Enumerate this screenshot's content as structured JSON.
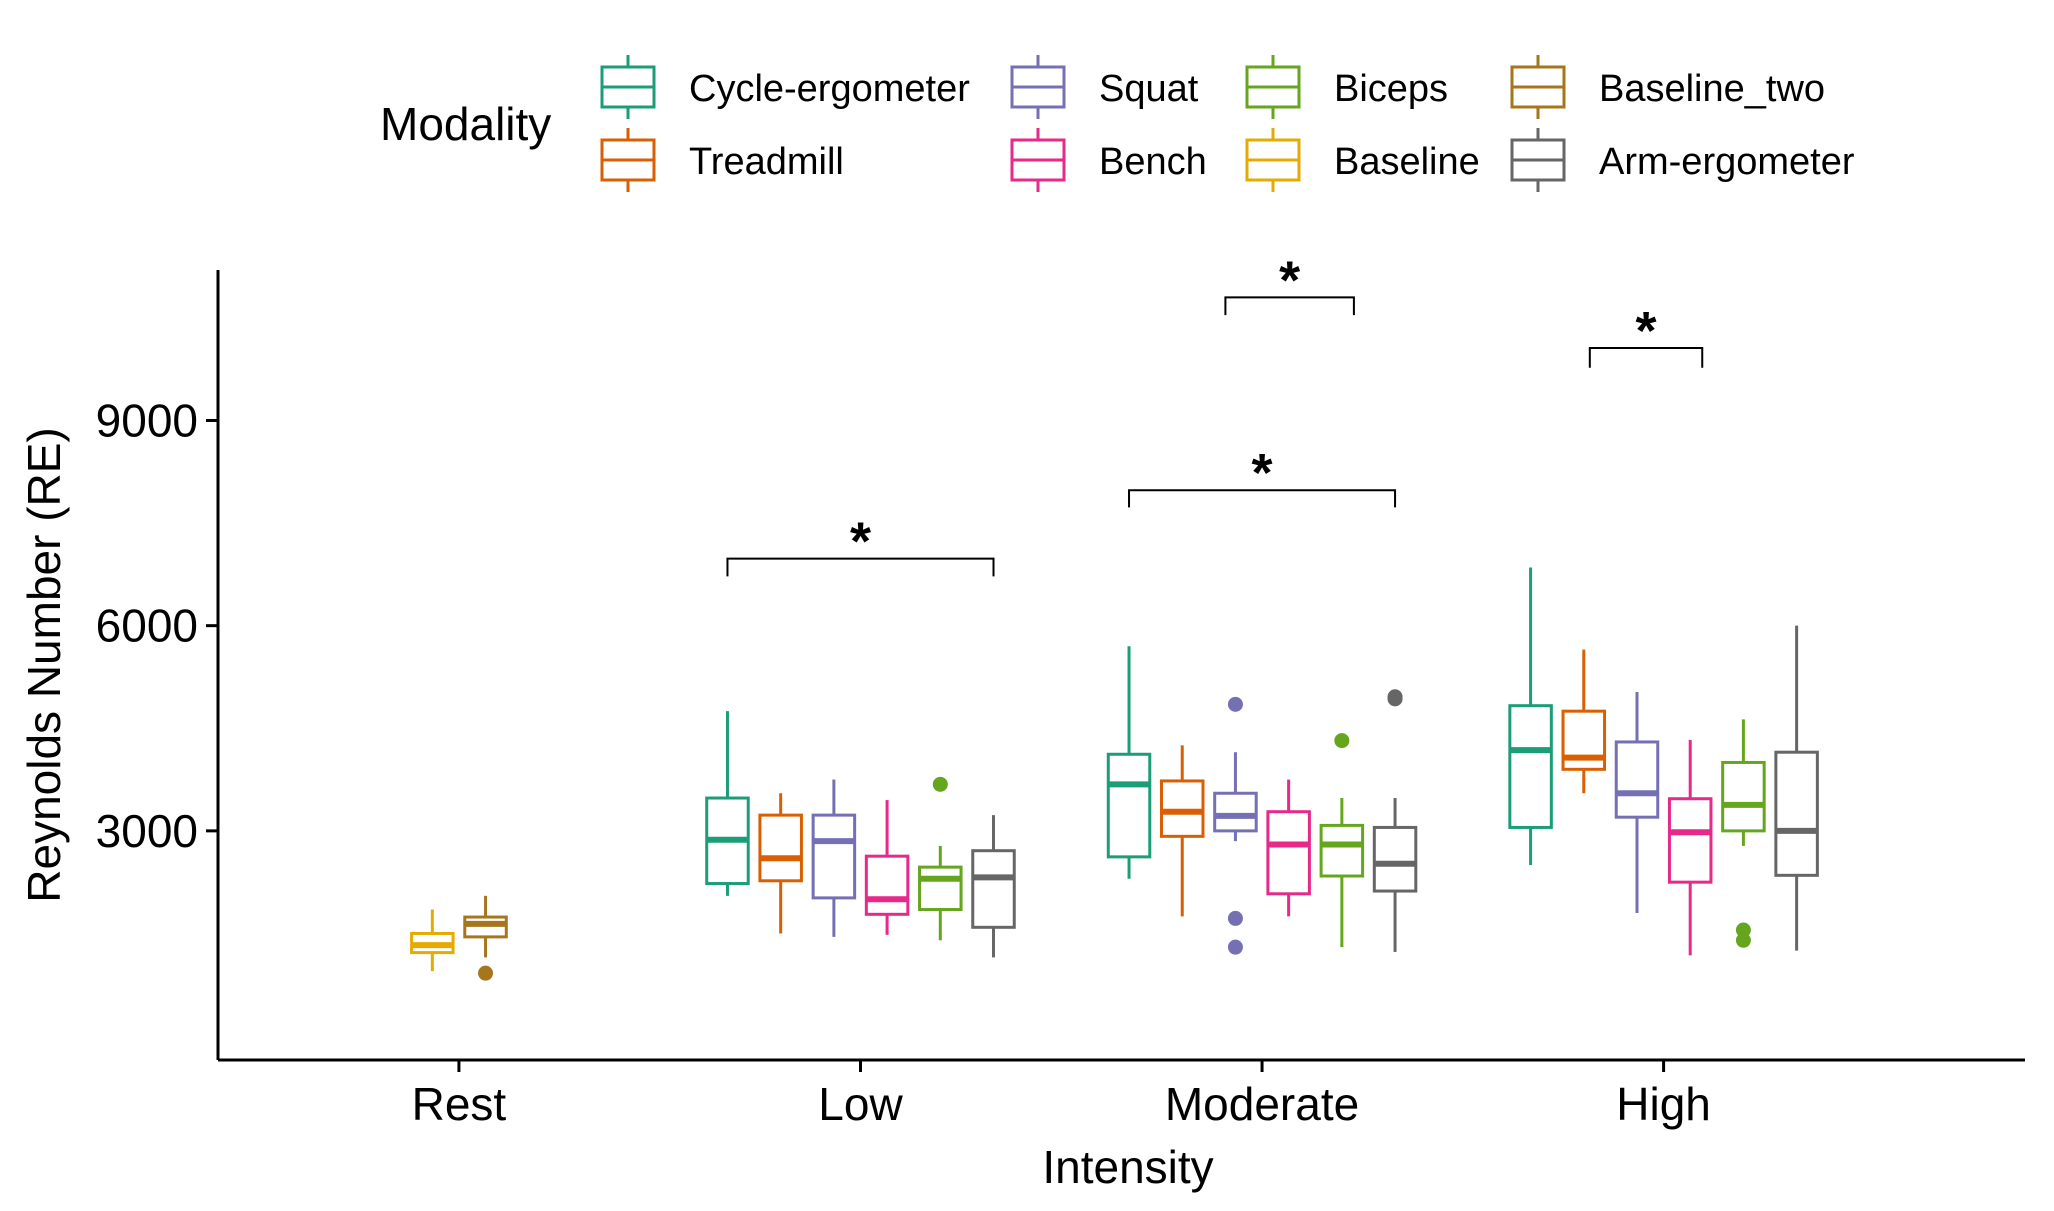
{
  "chart_data": {
    "type": "boxplot",
    "xlabel": "Intensity",
    "ylabel": "Reynolds Number (RE)",
    "legend_title": "Modality",
    "legend_position": "top",
    "grid": false,
    "ylim": [
      -350,
      11200
    ],
    "yticks": [
      3000,
      6000,
      9000
    ],
    "categories": [
      "Rest",
      "Low",
      "Moderate",
      "High"
    ],
    "groups": [
      {
        "name": "Cycle-ergometer",
        "color": "#1B9E77"
      },
      {
        "name": "Treadmill",
        "color": "#D95F02"
      },
      {
        "name": "Squat",
        "color": "#7570B3"
      },
      {
        "name": "Bench",
        "color": "#E7298A"
      },
      {
        "name": "Biceps",
        "color": "#66A61E"
      },
      {
        "name": "Baseline",
        "color": "#E6AB02"
      },
      {
        "name": "Baseline_two",
        "color": "#A6761D"
      },
      {
        "name": "Arm-ergometer",
        "color": "#666666"
      }
    ],
    "legend_order": [
      [
        "Cycle-ergometer",
        "Treadmill"
      ],
      [
        "Squat",
        "Bench"
      ],
      [
        "Biceps",
        "Baseline"
      ],
      [
        "Baseline_two",
        "Arm-ergometer"
      ]
    ],
    "boxes": [
      {
        "category": "Rest",
        "group": "Baseline",
        "whisker_low": 950,
        "q1": 1220,
        "median": 1330,
        "q3": 1500,
        "whisker_high": 1850,
        "outliers": []
      },
      {
        "category": "Rest",
        "group": "Baseline_two",
        "whisker_low": 1150,
        "q1": 1450,
        "median": 1640,
        "q3": 1740,
        "whisker_high": 2050,
        "outliers": [
          920
        ]
      },
      {
        "category": "Low",
        "group": "Cycle-ergometer",
        "whisker_low": 2050,
        "q1": 2230,
        "median": 2870,
        "q3": 3480,
        "whisker_high": 4750,
        "outliers": []
      },
      {
        "category": "Low",
        "group": "Treadmill",
        "whisker_low": 1500,
        "q1": 2270,
        "median": 2600,
        "q3": 3230,
        "whisker_high": 3550,
        "outliers": []
      },
      {
        "category": "Low",
        "group": "Squat",
        "whisker_low": 1450,
        "q1": 2020,
        "median": 2850,
        "q3": 3230,
        "whisker_high": 3750,
        "outliers": []
      },
      {
        "category": "Low",
        "group": "Bench",
        "whisker_low": 1480,
        "q1": 1780,
        "median": 2000,
        "q3": 2630,
        "whisker_high": 3450,
        "outliers": []
      },
      {
        "category": "Low",
        "group": "Biceps",
        "whisker_low": 1400,
        "q1": 1850,
        "median": 2300,
        "q3": 2470,
        "whisker_high": 2780,
        "outliers": [
          3680
        ]
      },
      {
        "category": "Low",
        "group": "Arm-ergometer",
        "whisker_low": 1150,
        "q1": 1590,
        "median": 2320,
        "q3": 2710,
        "whisker_high": 3230,
        "outliers": []
      },
      {
        "category": "Moderate",
        "group": "Cycle-ergometer",
        "whisker_low": 2300,
        "q1": 2620,
        "median": 3680,
        "q3": 4120,
        "whisker_high": 5700,
        "outliers": []
      },
      {
        "category": "Moderate",
        "group": "Treadmill",
        "whisker_low": 1750,
        "q1": 2920,
        "median": 3280,
        "q3": 3730,
        "whisker_high": 4250,
        "outliers": []
      },
      {
        "category": "Moderate",
        "group": "Squat",
        "whisker_low": 2850,
        "q1": 3000,
        "median": 3220,
        "q3": 3550,
        "whisker_high": 4150,
        "outliers": [
          4850,
          1720,
          1300
        ]
      },
      {
        "category": "Moderate",
        "group": "Bench",
        "whisker_low": 1750,
        "q1": 2080,
        "median": 2800,
        "q3": 3280,
        "whisker_high": 3750,
        "outliers": []
      },
      {
        "category": "Moderate",
        "group": "Biceps",
        "whisker_low": 1300,
        "q1": 2340,
        "median": 2800,
        "q3": 3080,
        "whisker_high": 3480,
        "outliers": [
          4320
        ]
      },
      {
        "category": "Moderate",
        "group": "Arm-ergometer",
        "whisker_low": 1230,
        "q1": 2120,
        "median": 2520,
        "q3": 3050,
        "whisker_high": 3480,
        "outliers": [
          4930,
          4960
        ]
      },
      {
        "category": "High",
        "group": "Cycle-ergometer",
        "whisker_low": 2500,
        "q1": 3050,
        "median": 4180,
        "q3": 4830,
        "whisker_high": 6850,
        "outliers": []
      },
      {
        "category": "High",
        "group": "Treadmill",
        "whisker_low": 3550,
        "q1": 3900,
        "median": 4070,
        "q3": 4750,
        "whisker_high": 5650,
        "outliers": []
      },
      {
        "category": "High",
        "group": "Squat",
        "whisker_low": 1800,
        "q1": 3200,
        "median": 3550,
        "q3": 4300,
        "whisker_high": 5030,
        "outliers": []
      },
      {
        "category": "High",
        "group": "Bench",
        "whisker_low": 1180,
        "q1": 2250,
        "median": 2980,
        "q3": 3470,
        "whisker_high": 4330,
        "outliers": []
      },
      {
        "category": "High",
        "group": "Biceps",
        "whisker_low": 2780,
        "q1": 3000,
        "median": 3380,
        "q3": 4000,
        "whisker_high": 4630,
        "outliers": [
          1550,
          1400
        ]
      },
      {
        "category": "High",
        "group": "Arm-ergometer",
        "whisker_low": 1250,
        "q1": 2350,
        "median": 3000,
        "q3": 4150,
        "whisker_high": 6000,
        "outliers": []
      }
    ],
    "significance_brackets": [
      {
        "category": "Low",
        "from_group": "Cycle-ergometer",
        "to_group": "Arm-ergometer",
        "y": 6720,
        "tip_to": 6980,
        "label": "*"
      },
      {
        "category": "Moderate",
        "from_group": "Cycle-ergometer",
        "to_group": "Arm-ergometer",
        "y": 7730,
        "tip_to": 7980,
        "label": "*"
      },
      {
        "category": "Moderate",
        "from_group": "Squat",
        "from_offset": -0.025,
        "to_group": "Biceps",
        "to_offset": 0.03,
        "y": 10540,
        "tip_to": 10800,
        "label": "*"
      },
      {
        "category": "High",
        "from_group": "Treadmill",
        "from_offset": 0.015,
        "to_group": "Bench",
        "to_offset": 0.03,
        "y": 9770,
        "tip_to": 10060,
        "label": "*"
      }
    ]
  }
}
